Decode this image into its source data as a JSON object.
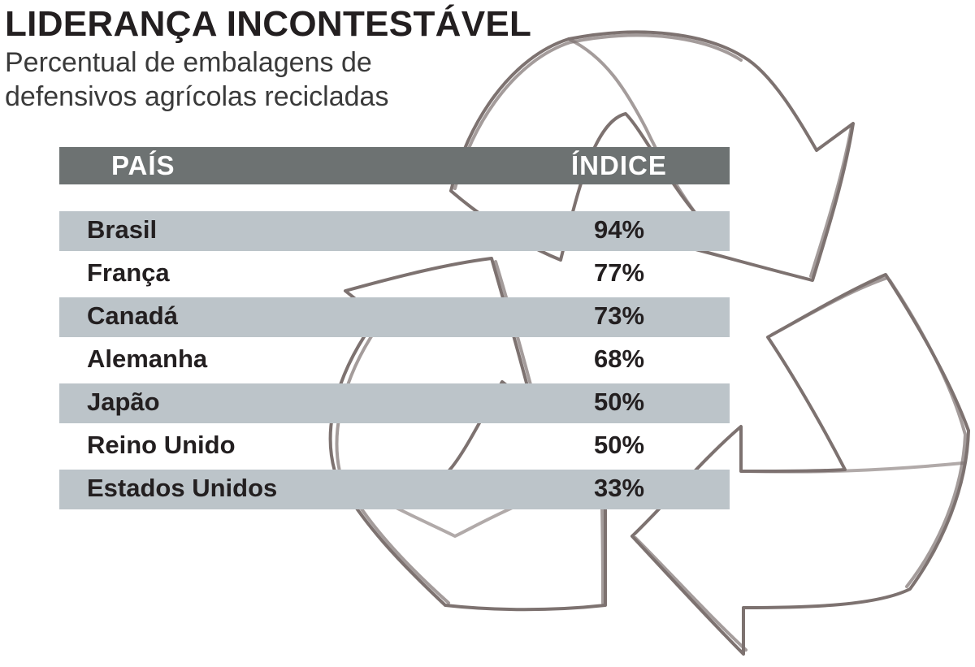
{
  "title": "LIDERANÇA INCONTESTÁVEL",
  "subtitle": "Percentual de embalagens de defensivos agrícolas recicladas",
  "colors": {
    "header_bar": "#6d7272",
    "row_shade": "#bcc4c9",
    "recycle_stroke": "#7d7270",
    "text": "#231f20"
  },
  "icons": [
    "recycle-icon"
  ],
  "chart_data": {
    "type": "table",
    "title": "LIDERANÇA INCONTESTÁVEL",
    "subtitle": "Percentual de embalagens de defensivos agrícolas recicladas",
    "columns": [
      "PAÍS",
      "ÍNDICE"
    ],
    "rows": [
      {
        "country": "Brasil",
        "value": "94%",
        "percent": 94
      },
      {
        "country": "França",
        "value": "77%",
        "percent": 77
      },
      {
        "country": "Canadá",
        "value": "73%",
        "percent": 73
      },
      {
        "country": "Alemanha",
        "value": "68%",
        "percent": 68
      },
      {
        "country": "Japão",
        "value": "50%",
        "percent": 50
      },
      {
        "country": "Reino Unido",
        "value": "50%",
        "percent": 50
      },
      {
        "country": "Estados Unidos",
        "value": "33%",
        "percent": 33
      }
    ]
  }
}
